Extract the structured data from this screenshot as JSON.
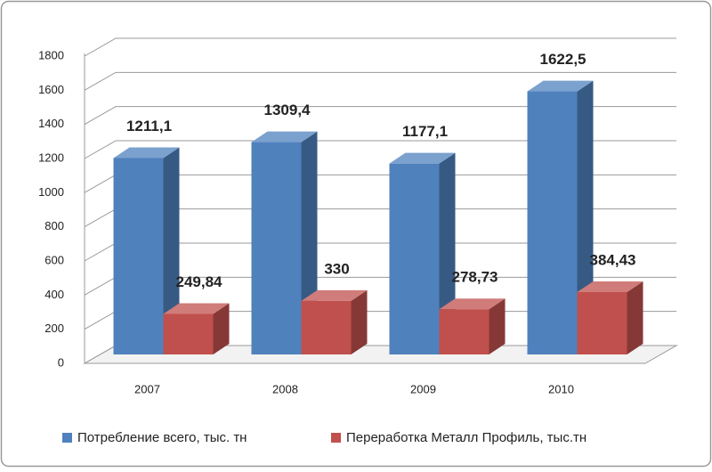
{
  "chart_data": {
    "type": "bar3d",
    "categories": [
      "2007",
      "2008",
      "2009",
      "2010"
    ],
    "series": [
      {
        "name": "Потребление всего, тыс. тн",
        "color": "#4f81bd",
        "values": [
          1211.1,
          1309.4,
          1177.1,
          1622.5
        ],
        "value_labels": [
          "1211,1",
          "1309,4",
          "1177,1",
          "1622,5"
        ]
      },
      {
        "name": "Переработка Металл Профиль, тыс.тн",
        "color": "#c0504d",
        "values": [
          249.84,
          330,
          278.73,
          384.43
        ],
        "value_labels": [
          "249,84",
          "330",
          "278,73",
          "384,43"
        ]
      }
    ],
    "ylim": [
      0,
      1800
    ],
    "yticks": [
      0,
      200,
      400,
      600,
      800,
      1000,
      1200,
      1400,
      1600,
      1800
    ],
    "grid": true,
    "legend": "bottom"
  }
}
